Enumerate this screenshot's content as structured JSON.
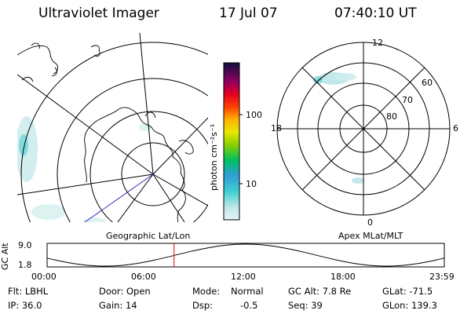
{
  "header": {
    "instrument": "Ultraviolet Imager",
    "date": "17 Jul 07",
    "time": "07:40:10 UT"
  },
  "colorbar": {
    "label": "photon cm⁻²s⁻¹",
    "ticks": [
      "100",
      "10"
    ],
    "scale": "log",
    "colors": [
      "#cfe9ea",
      "#3ecfd0",
      "#2f8fd6",
      "#00c000",
      "#b8e000",
      "#ffe000",
      "#ff9000",
      "#ff2000",
      "#d00040",
      "#700070",
      "#1a1a4a"
    ]
  },
  "maps": {
    "left_label": "Geographic Lat/Lon",
    "right_label": "Apex MLat/MLT",
    "mlt_labels": [
      "12",
      "18",
      "6",
      "0"
    ],
    "mlat_labels": [
      "60",
      "70",
      "80"
    ]
  },
  "altitude_plot": {
    "ylabel": "GC Alt",
    "yticks": [
      "9.0",
      "1.8"
    ],
    "xticks": [
      "00:00",
      "06:00",
      "12:00",
      "18:00",
      "23:59"
    ],
    "current_time_hours": 7.67,
    "marker_color": "#e00000"
  },
  "status": {
    "filter": "Flt: LBHL",
    "door": "Door: Open",
    "mode_label": "Mode:",
    "mode_value": "Normal",
    "gc_alt": "GC Alt: 7.8 Re",
    "glat": "GLat: -71.5",
    "ip": "IP: 36.0",
    "gain": "Gain: 14",
    "dsp_label": "Dsp:",
    "dsp_value": "-0.5",
    "seq": "Seq: 39",
    "glon": "GLon: 139.3"
  }
}
